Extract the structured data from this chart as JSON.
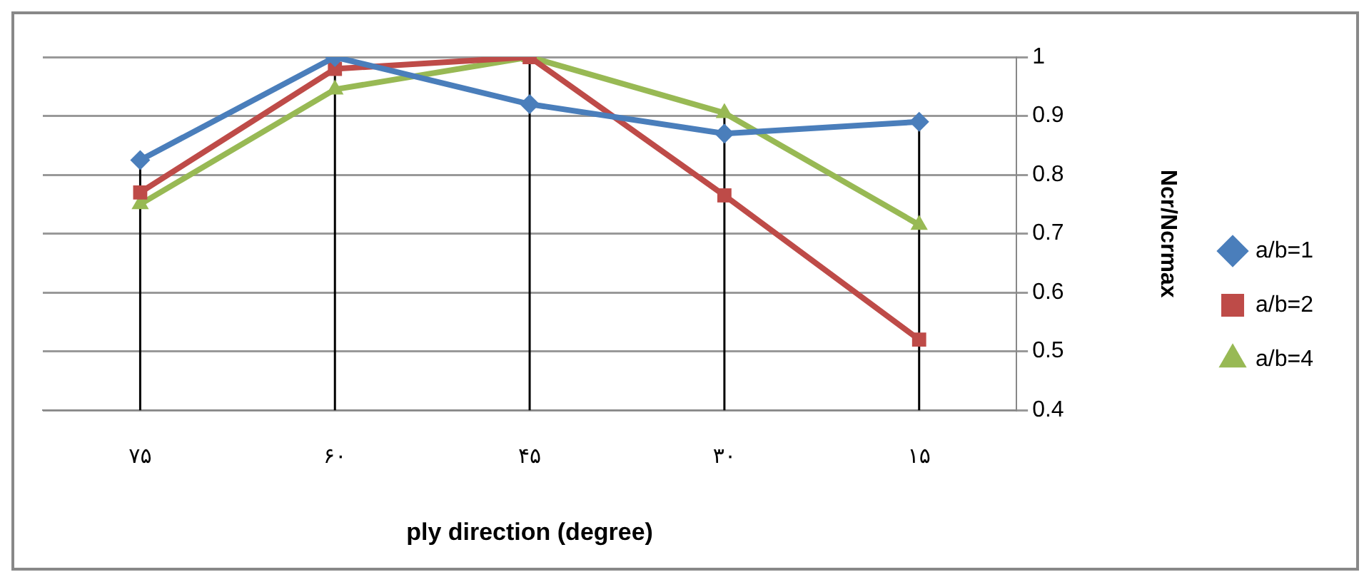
{
  "chart_data": {
    "type": "line",
    "xlabel": "ply direction (degree)",
    "ylabel": "Ncr/Ncrmax",
    "categories": [
      "۷۵",
      "۶۰",
      "۴۵",
      "۳۰",
      "۱۵"
    ],
    "series": [
      {
        "name": "a/b=1",
        "color": "#4a7ebb",
        "marker": "diamond",
        "values": [
          0.825,
          1.0,
          0.92,
          0.87,
          0.89
        ]
      },
      {
        "name": "a/b=2",
        "color": "#be4b48",
        "marker": "square",
        "values": [
          0.77,
          0.98,
          1.0,
          0.765,
          0.52
        ]
      },
      {
        "name": "a/b=4",
        "color": "#98b954",
        "marker": "triangle",
        "values": [
          0.75,
          0.945,
          1.0,
          0.905,
          0.715
        ]
      }
    ],
    "ylim": [
      0.4,
      1.0
    ],
    "yticks": [
      0.4,
      0.5,
      0.6,
      0.7,
      0.8,
      0.9,
      1
    ],
    "grid": true,
    "legend": "right"
  }
}
